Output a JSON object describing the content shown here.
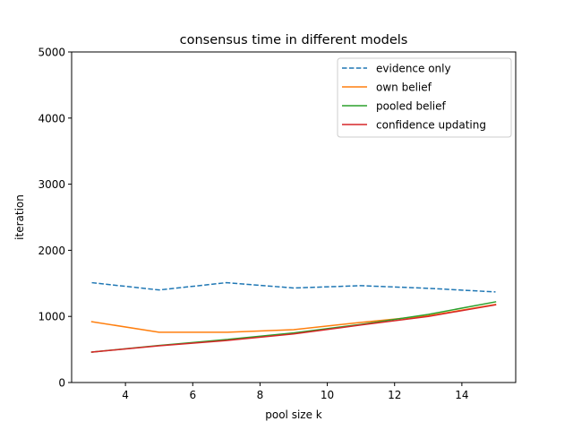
{
  "chart_data": {
    "type": "line",
    "title": "consensus time in different models",
    "xlabel": "pool size k",
    "ylabel": "iteration",
    "xlim": [
      2.4,
      15.6
    ],
    "ylim": [
      0,
      5000
    ],
    "xticks": [
      4,
      6,
      8,
      10,
      12,
      14
    ],
    "yticks": [
      0,
      1000,
      2000,
      3000,
      4000,
      5000
    ],
    "grid": false,
    "legend_position": "top-right",
    "x": [
      3,
      5,
      7,
      9,
      11,
      13,
      15
    ],
    "series": [
      {
        "name": "evidence only",
        "color": "#1f77b4",
        "dash": "dashed",
        "values": [
          1510,
          1400,
          1510,
          1430,
          1465,
          1425,
          1370
        ]
      },
      {
        "name": "own belief",
        "color": "#ff7f0e",
        "dash": "solid",
        "values": [
          920,
          760,
          760,
          800,
          910,
          1010,
          1180
        ]
      },
      {
        "name": "pooled belief",
        "color": "#2ca02c",
        "dash": "solid",
        "values": [
          460,
          560,
          650,
          750,
          880,
          1030,
          1220
        ]
      },
      {
        "name": "confidence updating",
        "color": "#d62728",
        "dash": "solid",
        "values": [
          460,
          555,
          635,
          735,
          870,
          1000,
          1175
        ]
      }
    ]
  }
}
